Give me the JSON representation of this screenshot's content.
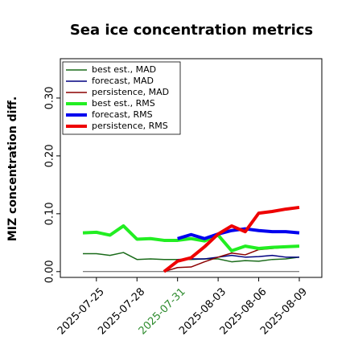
{
  "chart_data": {
    "type": "line",
    "title": "Sea ice concentration metrics",
    "y_label": "MIZ concentration diff.",
    "x": [
      "2025-07-24",
      "2025-07-25",
      "2025-07-26",
      "2025-07-27",
      "2025-07-28",
      "2025-07-29",
      "2025-07-30",
      "2025-07-31",
      "2025-08-01",
      "2025-08-02",
      "2025-08-03",
      "2025-08-04",
      "2025-08-05",
      "2025-08-06",
      "2025-08-07",
      "2025-08-08",
      "2025-08-09"
    ],
    "xticks": [
      "2025-07-25",
      "2025-07-28",
      "2025-07-31",
      "2025-08-03",
      "2025-08-06",
      "2025-08-09"
    ],
    "xtick_highlight": {
      "index": 2,
      "color": "#2e8b2e"
    },
    "ylim": [
      -0.01,
      0.368
    ],
    "yticks": [
      {
        "value": 0,
        "label": "0.00"
      },
      {
        "value": 0.1,
        "label": "0.10"
      },
      {
        "value": 0.2,
        "label": "0.20"
      },
      {
        "value": 0.3,
        "label": "0.30"
      }
    ],
    "zero_line": 0,
    "legend": "upper left",
    "series": [
      {
        "name": "best est., MAD",
        "color": "#1a6b1a",
        "width": 1.5,
        "values": [
          0.031,
          0.031,
          0.028,
          0.033,
          0.021,
          0.022,
          0.021,
          0.021,
          0.021,
          0.022,
          0.022,
          0.017,
          0.019,
          0.018,
          0.021,
          0.022,
          0.025
        ]
      },
      {
        "name": "forecast,  MAD",
        "color": "#000080",
        "width": 1.5,
        "values": [
          null,
          null,
          null,
          null,
          null,
          null,
          null,
          0.021,
          0.022,
          0.022,
          0.025,
          0.028,
          0.025,
          0.026,
          0.028,
          0.025,
          0.025
        ]
      },
      {
        "name": "persistence, MAD",
        "color": "#8b0000",
        "width": 1.5,
        "values": [
          null,
          null,
          null,
          null,
          null,
          null,
          0,
          0.007,
          0.008,
          0.017,
          0.025,
          0.032,
          0.029,
          0.038,
          0.04,
          0.042,
          0.044
        ]
      },
      {
        "name": "best est., RMS",
        "color": "#22ee22",
        "width": 4,
        "values": [
          0.067,
          0.068,
          0.063,
          0.079,
          0.056,
          0.057,
          0.054,
          0.054,
          0.057,
          0.053,
          0.063,
          0.036,
          0.044,
          0.04,
          0.042,
          0.043,
          0.044
        ]
      },
      {
        "name": "forecast,  RMS",
        "color": "#0000ee",
        "width": 4,
        "values": [
          null,
          null,
          null,
          null,
          null,
          null,
          null,
          0.057,
          0.064,
          0.057,
          0.065,
          0.071,
          0.074,
          0.071,
          0.069,
          0.069,
          0.067
        ]
      },
      {
        "name": "persistence, RMS",
        "color": "#ee0000",
        "width": 4,
        "values": [
          null,
          null,
          null,
          null,
          null,
          null,
          0,
          0.018,
          0.024,
          0.043,
          0.065,
          0.079,
          0.069,
          0.101,
          0.104,
          0.108,
          0.111
        ]
      }
    ]
  }
}
